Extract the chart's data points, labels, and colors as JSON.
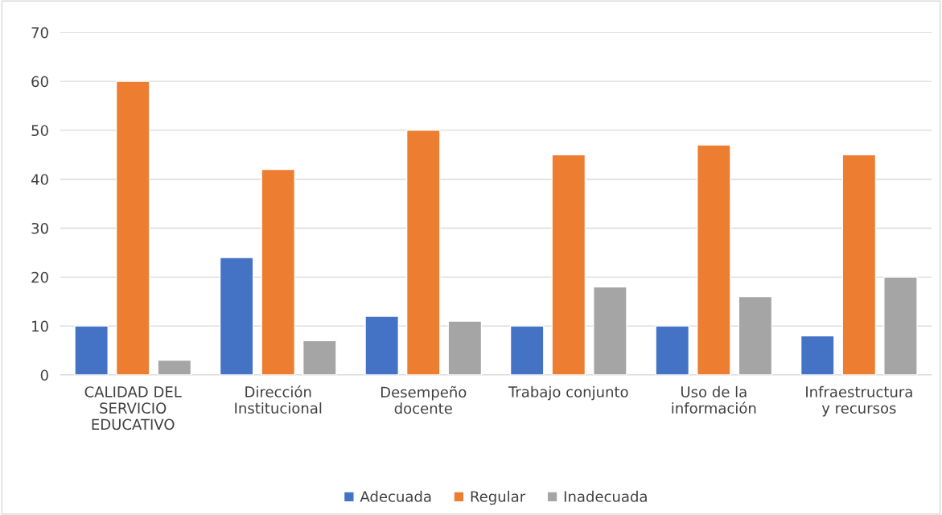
{
  "chart_data": {
    "type": "bar",
    "categories": [
      "CALIDAD DEL SERVICIO EDUCATIVO",
      "Dirección Institucional",
      "Desempeño docente",
      "Trabajo conjunto",
      "Uso de la información",
      "Infraestructura y recursos"
    ],
    "series": [
      {
        "name": "Adecuada",
        "color": "#4472c4",
        "values": [
          10,
          24,
          12,
          10,
          10,
          8
        ]
      },
      {
        "name": "Regular",
        "color": "#ed7d31",
        "values": [
          60,
          42,
          50,
          45,
          47,
          45
        ]
      },
      {
        "name": "Inadecuada",
        "color": "#a5a5a5",
        "values": [
          3,
          7,
          11,
          18,
          16,
          20
        ]
      }
    ],
    "ylim": [
      0,
      70
    ],
    "yticks": [
      0,
      10,
      20,
      30,
      40,
      50,
      60,
      70
    ],
    "grid": "y",
    "legend": "bottom"
  }
}
